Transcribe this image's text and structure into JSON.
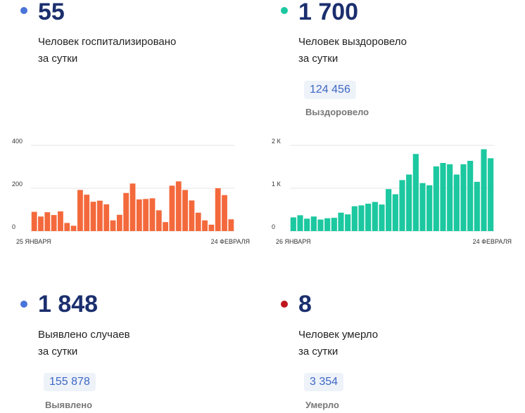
{
  "hospitalized": {
    "value": "55",
    "desc_line1": "Человек госпитализировано",
    "desc_line2": "за сутки",
    "dot_color": "#4a74d9"
  },
  "recovered": {
    "value": "1 700",
    "desc_line1": "Человек выздоровело",
    "desc_line2": "за сутки",
    "total": "124 456",
    "total_label": "Выздоровело",
    "dot_color": "#1cc8a0"
  },
  "cases": {
    "value": "1 848",
    "desc_line1": "Выявлено случаев",
    "desc_line2": "за сутки",
    "total": "155 878",
    "total_label": "Выявлено",
    "dot_color": "#4a74d9"
  },
  "deaths": {
    "value": "8",
    "desc_line1": "Человек умерло",
    "desc_line2": "за сутки",
    "total": "3 354",
    "total_label": "Умерло",
    "dot_color": "#c0151d"
  },
  "chart_data": [
    {
      "type": "bar",
      "color": "#f4693c",
      "ylim": [
        0,
        400
      ],
      "yticks": [
        {
          "v": 0,
          "label": "0"
        },
        {
          "v": 200,
          "label": "200"
        },
        {
          "v": 400,
          "label": "400"
        }
      ],
      "x_start_label": "25 ЯНВАРЯ",
      "x_end_label": "24 ФЕВРАЛЯ",
      "values": [
        90,
        68,
        88,
        75,
        92,
        38,
        25,
        192,
        170,
        137,
        142,
        125,
        50,
        76,
        178,
        222,
        148,
        150,
        153,
        97,
        42,
        212,
        232,
        192,
        143,
        86,
        50,
        30,
        200,
        168,
        55
      ]
    },
    {
      "type": "bar",
      "color": "#1cc8a0",
      "ylim": [
        0,
        2000
      ],
      "yticks": [
        {
          "v": 0,
          "label": "0"
        },
        {
          "v": 1000,
          "label": "1 К"
        },
        {
          "v": 2000,
          "label": "2 К"
        }
      ],
      "x_start_label": "26 ЯНВАРЯ",
      "x_end_label": "24 ФЕВРАЛЯ",
      "values": [
        320,
        370,
        290,
        340,
        270,
        300,
        310,
        430,
        390,
        580,
        600,
        640,
        680,
        620,
        980,
        860,
        1190,
        1320,
        1800,
        1120,
        1070,
        1510,
        1590,
        1560,
        1320,
        1560,
        1640,
        1150,
        1910,
        1700
      ]
    }
  ]
}
